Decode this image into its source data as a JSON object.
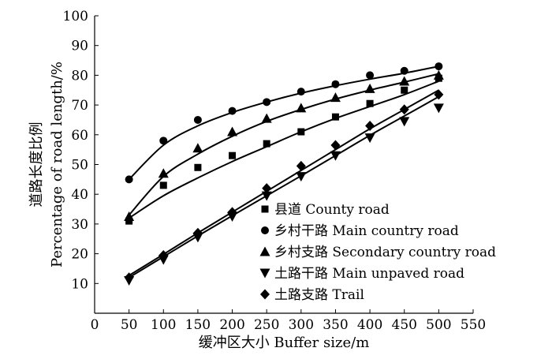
{
  "chart_data": {
    "type": "scatter",
    "xlabel": "缓冲区大小 Buffer size/m",
    "ylabel_line1": "道路长度比例",
    "ylabel_line2": "Percentage of road length/%",
    "xlim": [
      0,
      550
    ],
    "ylim": [
      0,
      100
    ],
    "xticks": [
      0,
      50,
      100,
      150,
      200,
      250,
      300,
      350,
      400,
      450,
      500,
      550
    ],
    "yticks": [
      10,
      20,
      30,
      40,
      50,
      60,
      70,
      80,
      90,
      100
    ],
    "grid": false,
    "legend_position": "bottom-right",
    "x": [
      50,
      100,
      150,
      200,
      250,
      300,
      350,
      400,
      450,
      500
    ],
    "series": [
      {
        "name": "县道 County road",
        "marker": "square",
        "values": [
          31,
          43,
          49,
          53,
          57,
          61,
          66,
          70.5,
          75,
          79
        ],
        "fit": [
          32,
          39.5,
          45.5,
          51,
          56,
          61,
          65.5,
          69.5,
          73.5,
          78
        ]
      },
      {
        "name": "乡村干路 Main country road",
        "marker": "circle",
        "values": [
          45,
          58,
          65,
          68,
          71,
          74.5,
          77,
          80,
          81.5,
          83
        ],
        "fit": [
          45,
          56.5,
          63,
          67.5,
          71,
          74,
          76.5,
          78.7,
          80.7,
          83
        ]
      },
      {
        "name": "乡村支路 Secondary country road",
        "marker": "triangle-up",
        "values": [
          32.5,
          47,
          55.5,
          61,
          65.5,
          69,
          72.5,
          75.5,
          78,
          80
        ],
        "fit": [
          33,
          46,
          53.5,
          59.5,
          64.5,
          68.5,
          72,
          75,
          77.7,
          80.5
        ]
      },
      {
        "name": "土路干路 Main unpaved road",
        "marker": "triangle-down",
        "values": [
          11,
          18,
          25.5,
          32.5,
          39.5,
          46,
          53,
          59,
          64.5,
          69
        ],
        "fit": [
          12,
          19,
          26,
          32.8,
          39.5,
          46.2,
          53,
          59.8,
          66.3,
          72.8
        ]
      },
      {
        "name": "土路支路 Trail",
        "marker": "diamond",
        "values": [
          12,
          19.5,
          27,
          34,
          42,
          49.5,
          56.5,
          63,
          68.5,
          73.5
        ],
        "fit": [
          12.7,
          19.8,
          27,
          34,
          41,
          48,
          55,
          62,
          68.5,
          75
        ]
      }
    ]
  }
}
